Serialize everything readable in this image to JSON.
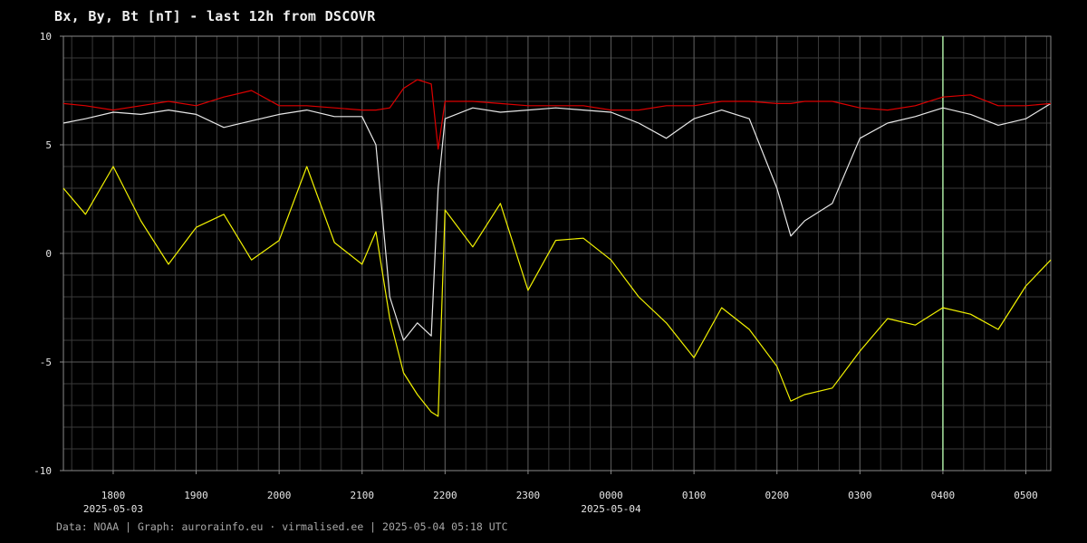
{
  "chart_data": {
    "type": "line",
    "title": "Bx, By, Bt [nT] - last 12h from DSCOVR",
    "xlabel": "",
    "ylabel": "",
    "ylim": [
      -10,
      10
    ],
    "yticks": [
      10,
      5,
      0,
      -5,
      -10
    ],
    "ytick_labels": [
      "10",
      "5",
      "0",
      "-5",
      "-10"
    ],
    "xlim": [
      "2025-05-03 17:24",
      "2025-05-04 05:18"
    ],
    "xticks": [
      {
        "t": "2025-05-03 18:00",
        "label": "1800",
        "date": "2025-05-03"
      },
      {
        "t": "2025-05-03 19:00",
        "label": "1900",
        "date": ""
      },
      {
        "t": "2025-05-03 20:00",
        "label": "2000",
        "date": ""
      },
      {
        "t": "2025-05-03 21:00",
        "label": "2100",
        "date": ""
      },
      {
        "t": "2025-05-03 22:00",
        "label": "2200",
        "date": ""
      },
      {
        "t": "2025-05-03 23:00",
        "label": "2300",
        "date": ""
      },
      {
        "t": "2025-05-04 00:00",
        "label": "0000",
        "date": "2025-05-04"
      },
      {
        "t": "2025-05-04 01:00",
        "label": "0100",
        "date": ""
      },
      {
        "t": "2025-05-04 02:00",
        "label": "0200",
        "date": ""
      },
      {
        "t": "2025-05-04 03:00",
        "label": "0300",
        "date": ""
      },
      {
        "t": "2025-05-04 04:00",
        "label": "0400",
        "date": ""
      },
      {
        "t": "2025-05-04 05:00",
        "label": "0500",
        "date": ""
      }
    ],
    "grid": true,
    "marker_line": {
      "t": "2025-05-04 04:00",
      "color": "#a8e6a0"
    },
    "colors": {
      "background": "#000000",
      "grid": "#3a3a3a",
      "axis": "#8a8a8a"
    },
    "x": [
      "2025-05-03 17:24",
      "2025-05-03 17:40",
      "2025-05-03 18:00",
      "2025-05-03 18:20",
      "2025-05-03 18:40",
      "2025-05-03 19:00",
      "2025-05-03 19:20",
      "2025-05-03 19:40",
      "2025-05-03 20:00",
      "2025-05-03 20:20",
      "2025-05-03 20:40",
      "2025-05-03 21:00",
      "2025-05-03 21:10",
      "2025-05-03 21:20",
      "2025-05-03 21:30",
      "2025-05-03 21:40",
      "2025-05-03 21:50",
      "2025-05-03 21:55",
      "2025-05-03 22:00",
      "2025-05-03 22:20",
      "2025-05-03 22:40",
      "2025-05-03 23:00",
      "2025-05-03 23:20",
      "2025-05-03 23:40",
      "2025-05-04 00:00",
      "2025-05-04 00:20",
      "2025-05-04 00:40",
      "2025-05-04 01:00",
      "2025-05-04 01:20",
      "2025-05-04 01:40",
      "2025-05-04 02:00",
      "2025-05-04 02:10",
      "2025-05-04 02:20",
      "2025-05-04 02:40",
      "2025-05-04 03:00",
      "2025-05-04 03:20",
      "2025-05-04 03:40",
      "2025-05-04 04:00",
      "2025-05-04 04:20",
      "2025-05-04 04:40",
      "2025-05-04 05:00",
      "2025-05-04 05:18"
    ],
    "series": [
      {
        "color": "#e8e8e8",
        "values": [
          6.0,
          6.2,
          6.5,
          6.4,
          6.6,
          6.4,
          5.8,
          6.1,
          6.4,
          6.6,
          6.3,
          6.3,
          5.0,
          -2.0,
          -4.0,
          -3.2,
          -3.8,
          3.0,
          6.2,
          6.7,
          6.5,
          6.6,
          6.7,
          6.6,
          6.5,
          6.0,
          5.3,
          6.2,
          6.6,
          6.2,
          3.0,
          0.8,
          1.5,
          2.3,
          5.3,
          6.0,
          6.3,
          6.7,
          6.4,
          5.9,
          6.2,
          6.9
        ]
      },
      {
        "color": "#f2f200",
        "values": [
          3.0,
          1.8,
          4.0,
          1.5,
          -0.5,
          1.2,
          1.8,
          -0.3,
          0.6,
          4.0,
          0.5,
          -0.5,
          1.0,
          -3.0,
          -5.5,
          -6.5,
          -7.3,
          -7.5,
          2.0,
          0.3,
          2.3,
          -1.7,
          0.6,
          0.7,
          -0.3,
          -2.0,
          -3.2,
          -4.8,
          -2.5,
          -3.5,
          -5.2,
          -6.8,
          -6.5,
          -6.2,
          -4.5,
          -3.0,
          -3.3,
          -2.5,
          -2.8,
          -3.5,
          -1.5,
          -0.3
        ]
      },
      {
        "color": "#dd0000",
        "values": [
          6.9,
          6.8,
          6.6,
          6.8,
          7.0,
          6.8,
          7.2,
          7.5,
          6.8,
          6.8,
          6.7,
          6.6,
          6.6,
          6.7,
          7.6,
          8.0,
          7.8,
          4.8,
          7.0,
          7.0,
          6.9,
          6.8,
          6.8,
          6.8,
          6.6,
          6.6,
          6.8,
          6.8,
          7.0,
          7.0,
          6.9,
          6.9,
          7.0,
          7.0,
          6.7,
          6.6,
          6.8,
          7.2,
          7.3,
          6.8,
          6.8,
          6.9
        ]
      }
    ]
  },
  "footer": {
    "text": "Data: NOAA | Graph: aurorainfo.eu · virmalised.ee | 2025-05-04 05:18 UTC"
  }
}
